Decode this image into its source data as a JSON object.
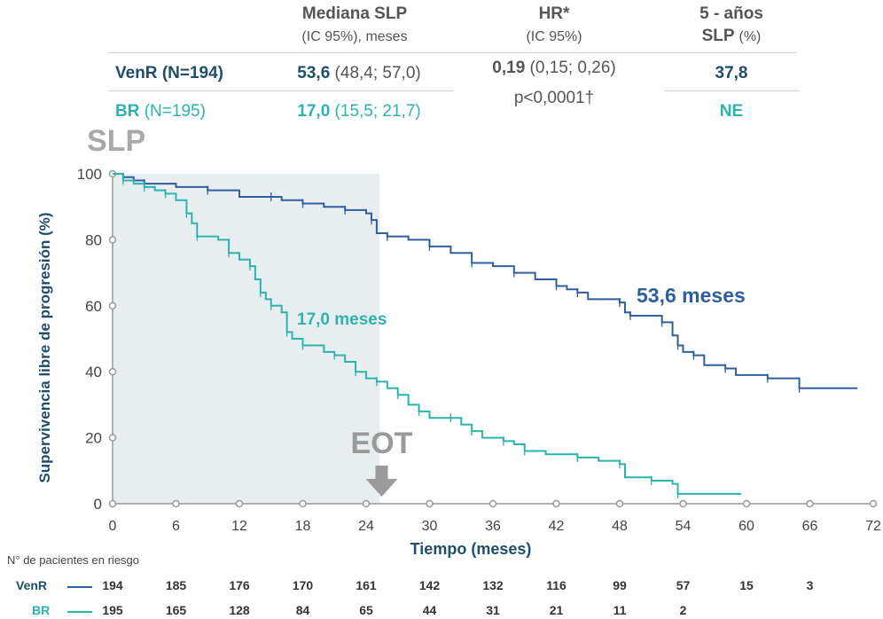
{
  "table": {
    "col1_header": "Mediana SLP",
    "col1_sub": "(IC 95%),  meses",
    "col2_header": "HR*",
    "col2_sub": "(IC 95%)",
    "col3_header_line1": "5 - años",
    "col3_header_line2": "SLP",
    "col3_header_unit": "(%)",
    "rows": [
      {
        "name": "VenR",
        "n": "(N=194)",
        "median": "53,6",
        "ci": "(48,4;  57,0)",
        "fiveyr": "37,8"
      },
      {
        "name": "BR",
        "n": "(N=195)",
        "median": "17,0",
        "ci": "(15,5;  21,7)",
        "fiveyr": "NE"
      }
    ],
    "hr_value": "0,19",
    "hr_ci": "(0,15;  0,26)",
    "p_value": "p<0,0001†"
  },
  "plot_label": "SLP",
  "eot_label": "EOT",
  "chart_data": {
    "type": "line",
    "xlabel": "Tiempo (meses)",
    "ylabel": "Supervivencia libre de progresión (%)",
    "xlim": [
      0,
      72
    ],
    "ylim": [
      0,
      100
    ],
    "x_ticks": [
      0,
      6,
      12,
      18,
      24,
      30,
      36,
      42,
      48,
      54,
      60,
      66,
      72
    ],
    "y_ticks": [
      0,
      20,
      40,
      60,
      80,
      100
    ],
    "shaded_region_x": [
      0,
      25.3
    ],
    "eot_x": 25.3,
    "colors": {
      "VenR": "#2e5f9e",
      "BR": "#2bb3ad"
    },
    "series": [
      {
        "name": "VenR",
        "median_label": "53,6 meses",
        "points": [
          [
            0,
            100
          ],
          [
            1,
            99
          ],
          [
            2,
            98
          ],
          [
            3,
            97
          ],
          [
            6,
            96
          ],
          [
            9,
            95
          ],
          [
            12,
            93
          ],
          [
            15,
            93
          ],
          [
            16,
            92
          ],
          [
            18,
            91
          ],
          [
            20,
            90
          ],
          [
            22,
            89
          ],
          [
            24,
            88
          ],
          [
            24.5,
            86
          ],
          [
            25,
            82
          ],
          [
            26,
            81
          ],
          [
            28,
            80
          ],
          [
            30,
            78
          ],
          [
            32,
            76
          ],
          [
            34,
            73
          ],
          [
            36,
            72
          ],
          [
            38,
            70
          ],
          [
            40,
            68
          ],
          [
            42,
            66
          ],
          [
            43,
            65
          ],
          [
            44,
            64
          ],
          [
            45,
            62
          ],
          [
            48,
            61
          ],
          [
            48.5,
            58
          ],
          [
            49,
            57
          ],
          [
            51,
            57
          ],
          [
            52,
            55
          ],
          [
            53,
            51
          ],
          [
            53.5,
            48
          ],
          [
            54,
            46
          ],
          [
            55,
            45
          ],
          [
            56,
            42
          ],
          [
            58,
            41
          ],
          [
            59,
            39
          ],
          [
            62,
            38
          ],
          [
            65,
            38
          ],
          [
            65,
            35
          ],
          [
            70.5,
            35
          ]
        ]
      },
      {
        "name": "BR",
        "median_label": "17,0 meses",
        "points": [
          [
            0,
            100
          ],
          [
            1,
            98
          ],
          [
            2,
            97
          ],
          [
            3,
            96
          ],
          [
            4,
            95
          ],
          [
            5,
            94
          ],
          [
            6,
            92
          ],
          [
            7,
            88
          ],
          [
            7.5,
            85
          ],
          [
            8,
            81
          ],
          [
            10,
            80
          ],
          [
            11,
            76
          ],
          [
            12,
            74
          ],
          [
            13,
            72
          ],
          [
            13.5,
            68
          ],
          [
            14,
            64
          ],
          [
            14.5,
            62
          ],
          [
            15,
            60
          ],
          [
            16,
            58
          ],
          [
            16.5,
            52
          ],
          [
            17,
            50
          ],
          [
            18,
            48
          ],
          [
            20,
            46
          ],
          [
            21,
            45
          ],
          [
            22,
            43
          ],
          [
            23,
            40
          ],
          [
            24,
            38
          ],
          [
            25,
            37
          ],
          [
            26,
            35
          ],
          [
            27,
            33
          ],
          [
            28,
            30
          ],
          [
            29,
            28
          ],
          [
            30,
            26
          ],
          [
            32,
            26
          ],
          [
            33,
            24
          ],
          [
            34,
            22
          ],
          [
            35,
            20
          ],
          [
            37,
            19
          ],
          [
            38,
            18
          ],
          [
            39,
            16
          ],
          [
            41,
            15
          ],
          [
            44,
            14
          ],
          [
            46,
            13
          ],
          [
            48,
            12
          ],
          [
            48.5,
            8
          ],
          [
            51,
            7
          ],
          [
            53,
            6
          ],
          [
            53.5,
            3
          ],
          [
            59.5,
            3
          ]
        ]
      }
    ]
  },
  "risk_table": {
    "title": "N° de pacientes en riesgo",
    "rows": [
      {
        "name": "VenR",
        "values": [
          "194",
          "185",
          "176",
          "170",
          "161",
          "142",
          "132",
          "116",
          "99",
          "57",
          "15",
          "3"
        ]
      },
      {
        "name": "BR",
        "values": [
          "195",
          "165",
          "128",
          "84",
          "65",
          "44",
          "31",
          "21",
          "11",
          "2",
          "",
          ""
        ]
      }
    ]
  }
}
